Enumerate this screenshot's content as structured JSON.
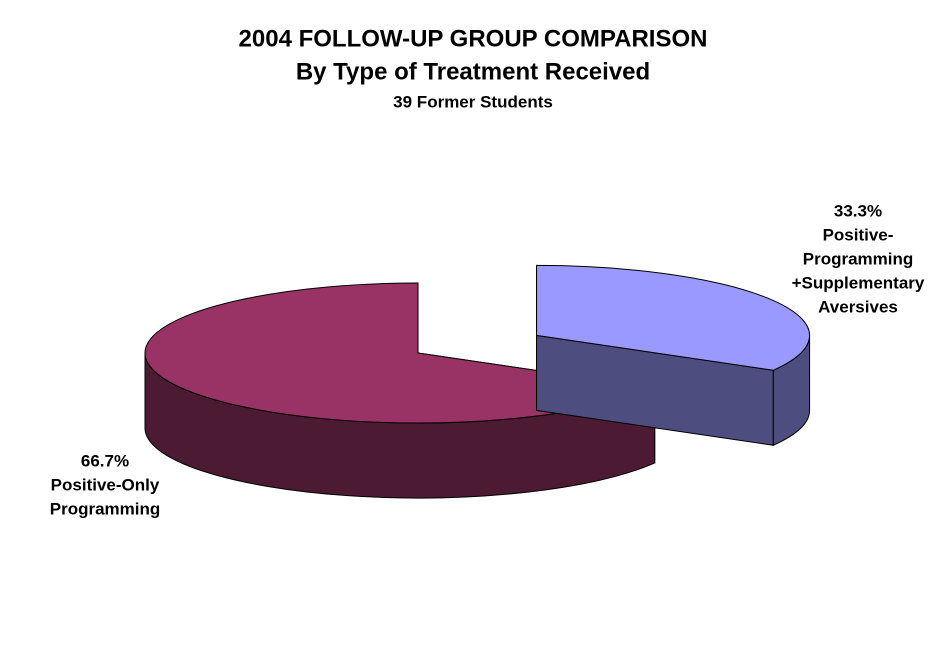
{
  "chart_data": {
    "type": "pie",
    "title": "2004 FOLLOW-UP GROUP COMPARISON",
    "subtitle": "By Type of Treatment Received",
    "caption": "39 Former Students",
    "categories": [
      [
        "Positive-",
        "Programming",
        "+Supplementary",
        "Aversives"
      ],
      [
        "Positive-Only",
        "Programming"
      ]
    ],
    "values": [
      33.3,
      66.7
    ],
    "value_labels": [
      "33.3%",
      "66.7%"
    ],
    "colors": [
      "#9999ff",
      "#993366"
    ],
    "explode": [
      true,
      false
    ]
  }
}
